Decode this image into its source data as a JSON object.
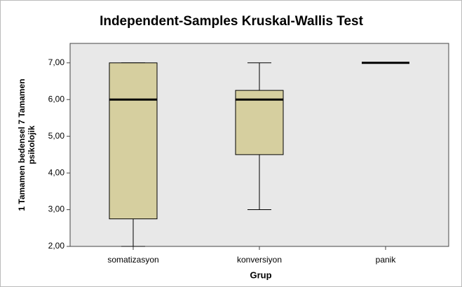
{
  "chart_data": {
    "type": "box",
    "title": "Independent-Samples Kruskal-Wallis Test",
    "x_label": "Grup",
    "y_label": [
      "1 Tamamen bedensel 7 Tamamen",
      "psikolojik"
    ],
    "categories": [
      "somatizasyon",
      "konversiyon",
      "panik"
    ],
    "min": [
      2,
      3,
      7
    ],
    "q1": [
      2.75,
      4.5,
      7
    ],
    "median": [
      6,
      6,
      7
    ],
    "q3": [
      7,
      6.25,
      7
    ],
    "max": [
      7,
      7,
      7
    ],
    "color": "#d6cf9f",
    "background": "#e8e8e8",
    "ylim": [
      2,
      7.53
    ],
    "yticks": [
      {
        "value": 2,
        "label": "2,00"
      },
      {
        "value": 3,
        "label": "3,00"
      },
      {
        "value": 4,
        "label": "4,00"
      },
      {
        "value": 5,
        "label": "5,00"
      },
      {
        "value": 6,
        "label": "6,00"
      },
      {
        "value": 7,
        "label": "7,00"
      }
    ]
  }
}
